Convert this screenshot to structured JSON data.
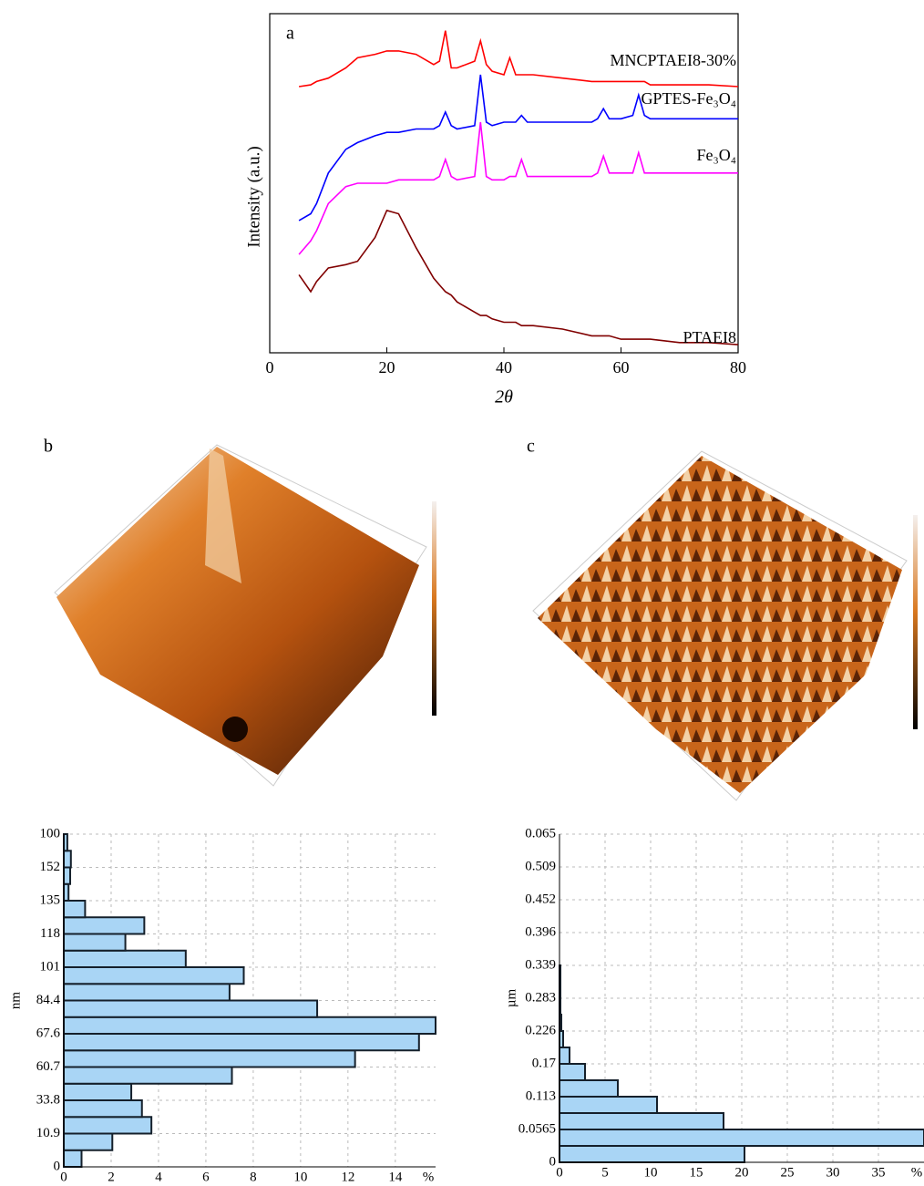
{
  "chart_data": [
    {
      "type": "line",
      "panel": "a",
      "xlabel": "2θ",
      "ylabel": "Intensity (a.u.)",
      "x": [
        5,
        7,
        8,
        10,
        13,
        15,
        18,
        20,
        22,
        25,
        28,
        29,
        30,
        31,
        32,
        35,
        36,
        37,
        38,
        40,
        41,
        42,
        43,
        44,
        45,
        50,
        55,
        56,
        57,
        58,
        60,
        62,
        63,
        64,
        65,
        70,
        75,
        80
      ],
      "xlim": [
        0,
        80
      ],
      "xticks": [
        0,
        20,
        40,
        60,
        80
      ],
      "ylim": [
        0,
        100
      ],
      "series": [
        {
          "name": "MNCPTAEI8-30%",
          "color": "#ff0000",
          "values": [
            78.5,
            79,
            80,
            81,
            84,
            87,
            88,
            89,
            89,
            88,
            85,
            86,
            95,
            84,
            84,
            86,
            92,
            85,
            83,
            82,
            87,
            82,
            82,
            82,
            82,
            81,
            80,
            80,
            80,
            80,
            80,
            80,
            80,
            80,
            79,
            79,
            79,
            78.5
          ]
        },
        {
          "name": "GPTES-Fe₃O₄",
          "color": "#0000ff",
          "values": [
            39,
            41,
            44,
            53,
            60,
            62,
            64,
            65,
            65,
            66,
            66,
            67,
            71,
            67,
            66,
            67,
            82,
            68,
            67,
            68,
            68,
            68,
            70,
            68,
            68,
            68,
            68,
            69,
            72,
            69,
            69,
            70,
            76,
            70,
            69,
            69,
            69,
            69
          ]
        },
        {
          "name": "Fe₃O₄",
          "color": "#ff00ff",
          "values": [
            29,
            33,
            36,
            44,
            49,
            50,
            50,
            50,
            51,
            51,
            51,
            52,
            57,
            52,
            51,
            52,
            68,
            52,
            51,
            51,
            52,
            52,
            57,
            52,
            52,
            52,
            52,
            53,
            58,
            53,
            53,
            53,
            59,
            53,
            53,
            53,
            53,
            53
          ]
        },
        {
          "name": "PTAEI8",
          "color": "#800000",
          "values": [
            23,
            18,
            21,
            25,
            26,
            27,
            34,
            42,
            41,
            31,
            22,
            20,
            18,
            17,
            15,
            12,
            11,
            11,
            10,
            9,
            9,
            9,
            8,
            8,
            8,
            7,
            5,
            5,
            5,
            5,
            4,
            4,
            4,
            4,
            4,
            3,
            3,
            2.4
          ]
        }
      ]
    },
    {
      "type": "hbar",
      "ylabel": "nm",
      "xlabel": "%",
      "color": "#a9d5f5",
      "xlim": [
        0,
        15.7
      ],
      "xticks": [
        0,
        2,
        4,
        6,
        8,
        10,
        12,
        14
      ],
      "edge_labels": [
        "0",
        null,
        "10.9",
        null,
        "33.8",
        null,
        "60.7",
        null,
        "67.6",
        null,
        "84.4",
        null,
        "101",
        null,
        "118",
        null,
        "135",
        null,
        "152",
        null,
        "100"
      ],
      "values": [
        0.75,
        2.05,
        3.7,
        3.3,
        2.85,
        7.1,
        12.3,
        15.0,
        15.7,
        10.7,
        7.0,
        7.6,
        5.15,
        2.6,
        3.4,
        0.9,
        0.2,
        0.27,
        0.3,
        0.15
      ]
    },
    {
      "type": "hbar",
      "ylabel": "µm",
      "xlabel": "%",
      "color": "#a9d5f5",
      "xlim": [
        0,
        40
      ],
      "xticks": [
        0,
        5,
        10,
        15,
        20,
        25,
        30,
        35
      ],
      "edge_labels": [
        "0",
        null,
        "0.0565",
        null,
        "0.113",
        null,
        "0.17",
        null,
        "0.226",
        null,
        "0.283",
        null,
        "0.339",
        null,
        "0.396",
        null,
        "0.452",
        null,
        "0.509",
        null,
        "0.065"
      ],
      "values": [
        20.3,
        40,
        18,
        10.7,
        6.4,
        2.8,
        1.1,
        0.4,
        0.2,
        0.1,
        0.1,
        0.1,
        0,
        0,
        0,
        0,
        0,
        0,
        0,
        0
      ]
    }
  ],
  "images": [
    {
      "label": "b"
    },
    {
      "label": "c"
    }
  ]
}
